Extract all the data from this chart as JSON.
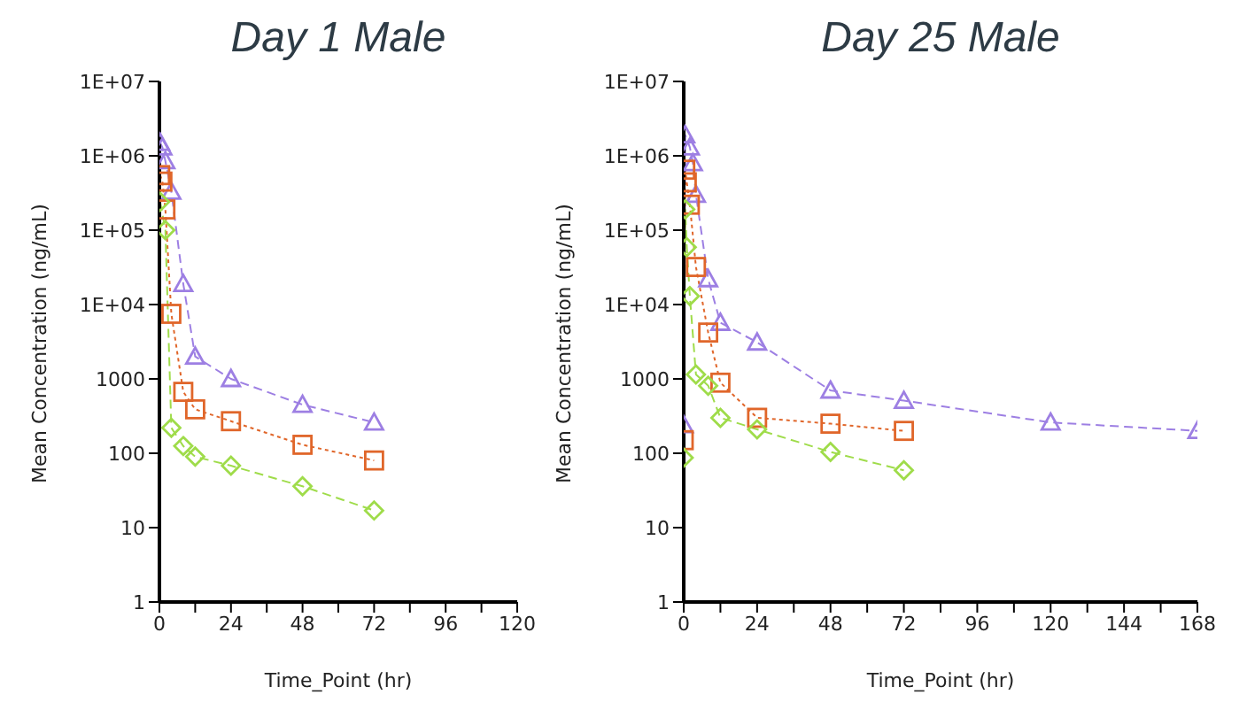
{
  "chart_data": [
    {
      "type": "line",
      "title": "Day 1 Male",
      "xlabel": "Time_Point (hr)",
      "ylabel": "Mean Concentration (ng/mL)",
      "log": "y",
      "xlim": [
        0,
        120
      ],
      "xticks": [
        0,
        {
          "value": 12,
          "label": null
        },
        24,
        {
          "value": 36,
          "label": null
        },
        48,
        {
          "value": 60,
          "label": null
        },
        72,
        {
          "value": 84,
          "label": null
        },
        96,
        {
          "value": 108,
          "label": null
        },
        120
      ],
      "ylim": [
        1,
        10000000
      ],
      "yticks": [
        1,
        10,
        100,
        1000,
        {
          "value": 10000,
          "label": "1E+04"
        },
        {
          "value": 100000,
          "label": "1E+05"
        },
        {
          "value": 1000000,
          "label": "1E+06"
        },
        {
          "value": 10000000,
          "label": "1E+07"
        }
      ],
      "series": [
        {
          "color": "#9d7fe3",
          "marker": "triangle",
          "line_style": "dashed",
          "x": [
            0.25,
            1,
            2,
            4,
            8,
            12,
            24,
            48,
            72
          ],
          "values": [
            1500000,
            1300000,
            850000,
            330000,
            19000,
            2000,
            1000,
            450,
            260
          ]
        },
        {
          "color": "#e0662a",
          "marker": "square",
          "line_style": "dotted",
          "x": [
            0.25,
            1,
            2,
            4,
            8,
            12,
            24,
            48,
            72
          ],
          "values": [
            550000,
            450000,
            190000,
            7500,
            670,
            390,
            270,
            130,
            80
          ]
        },
        {
          "color": "#9fdc4a",
          "marker": "diamond",
          "line_style": "dashed",
          "x": [
            0.25,
            2,
            4,
            8,
            12,
            24,
            48,
            72
          ],
          "values": [
            240000,
            100000,
            220,
            125,
            90,
            68,
            36,
            17
          ]
        }
      ]
    },
    {
      "type": "line",
      "title": "Day 25 Male",
      "xlabel": "Time_Point (hr)",
      "ylabel": "Mean Concentration (ng/mL)",
      "log": "y",
      "xlim": [
        0,
        168
      ],
      "xticks": [
        0,
        {
          "value": 12,
          "label": null
        },
        24,
        {
          "value": 36,
          "label": null
        },
        48,
        {
          "value": 60,
          "label": null
        },
        72,
        {
          "value": 84,
          "label": null
        },
        96,
        {
          "value": 108,
          "label": null
        },
        120,
        {
          "value": 132,
          "label": null
        },
        144,
        {
          "value": 156,
          "label": null
        },
        168
      ],
      "ylim": [
        1,
        10000000
      ],
      "yticks": [
        1,
        10,
        100,
        1000,
        {
          "value": 10000,
          "label": "1E+04"
        },
        {
          "value": 100000,
          "label": "1E+05"
        },
        {
          "value": 1000000,
          "label": "1E+06"
        },
        {
          "value": 10000000,
          "label": "1E+07"
        }
      ],
      "series": [
        {
          "color": "#9d7fe3",
          "marker": "triangle",
          "line_style": "dashed",
          "x": [
            0,
            0.5,
            2,
            3,
            4,
            8,
            12,
            24,
            48,
            72,
            120,
            168
          ],
          "values": [
            240,
            1900000,
            1300000,
            800000,
            300000,
            22000,
            5700,
            3100,
            700,
            510,
            260,
            200
          ]
        },
        {
          "color": "#e0662a",
          "marker": "square",
          "line_style": "dotted",
          "x": [
            0,
            0.5,
            1,
            2,
            4,
            8,
            12,
            24,
            48,
            72
          ],
          "values": [
            150,
            650000,
            440000,
            220000,
            32000,
            4200,
            890,
            300,
            250,
            200
          ]
        },
        {
          "color": "#9fdc4a",
          "marker": "diamond",
          "line_style": "dashed",
          "x": [
            0,
            0.5,
            1,
            2,
            4,
            8,
            12,
            24,
            48,
            72
          ],
          "values": [
            87,
            190000,
            59000,
            13000,
            1150,
            810,
            300,
            210,
            104,
            59
          ]
        }
      ]
    }
  ]
}
